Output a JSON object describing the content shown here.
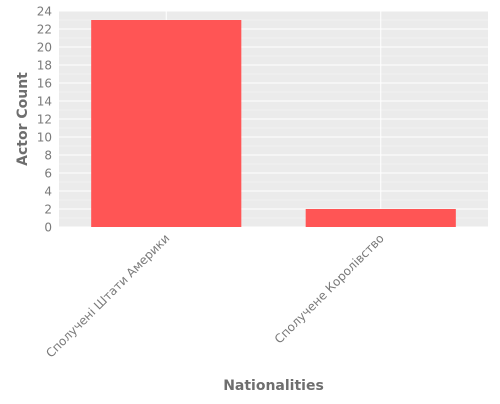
{
  "chart_data": {
    "type": "bar",
    "categories": [
      "Сполучені Штати Америки",
      "Сполучене Королівство"
    ],
    "values": [
      23,
      2
    ],
    "xlabel": "Nationalities",
    "ylabel": "Actor Count",
    "ylim": [
      0,
      24
    ],
    "yticks": [
      "0",
      "2",
      "4",
      "6",
      "8",
      "10",
      "12",
      "14",
      "16",
      "18",
      "20",
      "22",
      "24"
    ],
    "grid": true,
    "legend": "none",
    "colors": {
      "bar": "#ff5555",
      "plot_background": "#ebebeb",
      "grid": "#ffffff"
    }
  }
}
